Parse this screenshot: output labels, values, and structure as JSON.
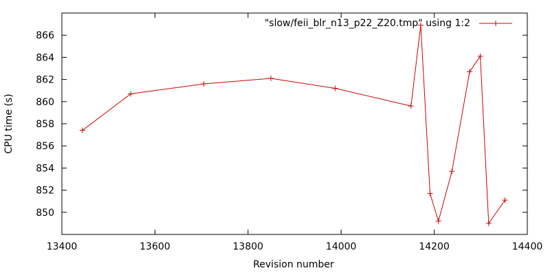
{
  "chart_data": {
    "type": "line",
    "title": "",
    "xlabel": "Revision number",
    "ylabel": "CPU time (s)",
    "xlim": [
      13400,
      14400
    ],
    "ylim": [
      848,
      868
    ],
    "xticks": [
      13400,
      13600,
      13800,
      14000,
      14200,
      14400
    ],
    "yticks": [
      850,
      852,
      854,
      856,
      858,
      860,
      862,
      864,
      866
    ],
    "grid": false,
    "legend_position": "top-right",
    "series": [
      {
        "name": "\"slow/feii_blr_n13_p22_Z20.tmp\" using 1:2",
        "color": "#cc0000",
        "marker": "plus",
        "x": [
          13444,
          13548,
          13705,
          13849,
          13987,
          14150,
          14171,
          14191,
          14209,
          14238,
          14276,
          14299,
          14317,
          14352
        ],
        "y": [
          857.4,
          860.7,
          861.6,
          862.1,
          861.2,
          859.6,
          866.9,
          851.7,
          849.2,
          853.7,
          862.7,
          864.1,
          849.0,
          851.1
        ]
      }
    ]
  }
}
